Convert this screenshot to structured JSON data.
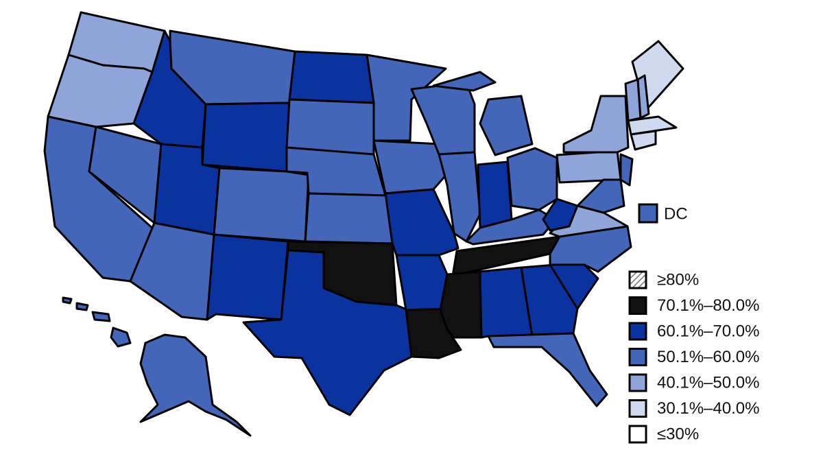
{
  "map": {
    "legend": {
      "items": [
        {
          "label": "≥80%",
          "color": "#bfbfbf",
          "hatch": true
        },
        {
          "label": "70.1%–80.0%",
          "color": "#111111"
        },
        {
          "label": "60.1%–70.0%",
          "color": "#0a33a0"
        },
        {
          "label": "50.1%–60.0%",
          "color": "#4466b8"
        },
        {
          "label": "40.1%–50.0%",
          "color": "#8fa5d9"
        },
        {
          "label": "30.1%–40.0%",
          "color": "#cfdaf1"
        },
        {
          "label": "≤30%",
          "color": "#ffffff"
        }
      ]
    },
    "dc": {
      "label": "DC",
      "category": 3
    }
  }
}
